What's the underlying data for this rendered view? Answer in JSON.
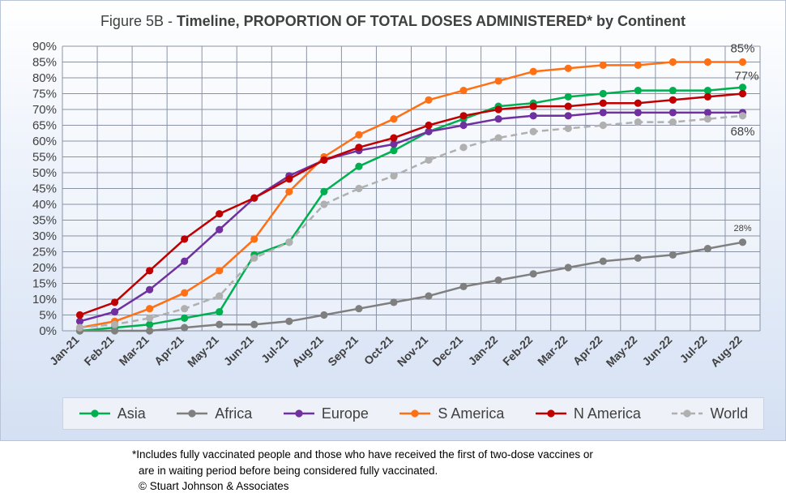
{
  "title": {
    "prefix": "Figure 5B - ",
    "main": "Timeline, PROPORTION OF TOTAL DOSES ADMINISTERED* by Continent"
  },
  "footnote": {
    "line1": "*Includes fully vaccinated people and those who have received the first of two-dose vaccines or",
    "line2": "are in waiting period before being considered fully vaccinated.",
    "line3": "© Stuart Johnson & Associates"
  },
  "chart_data": {
    "type": "line",
    "title": "Figure 5B - Timeline, PROPORTION OF TOTAL DOSES ADMINISTERED* by Continent",
    "x": [
      "Jan-21",
      "Feb-21",
      "Mar-21",
      "Apr-21",
      "May-21",
      "Jun-21",
      "Jul-21",
      "Aug-21",
      "Sep-21",
      "Oct-21",
      "Nov-21",
      "Dec-21",
      "Jan-22",
      "Feb-22",
      "Mar-22",
      "Apr-22",
      "May-22",
      "Jun-22",
      "Jul-22",
      "Aug-22"
    ],
    "ylim": [
      0,
      90
    ],
    "yticks": [
      "0%",
      "5%",
      "10%",
      "15%",
      "20%",
      "25%",
      "30%",
      "35%",
      "40%",
      "45%",
      "50%",
      "55%",
      "60%",
      "65%",
      "70%",
      "75%",
      "80%",
      "85%",
      "90%"
    ],
    "grid": true,
    "legend": "bottom",
    "series": [
      {
        "name": "Asia",
        "color": "#00b050",
        "dash": false,
        "values": [
          0,
          1,
          2,
          4,
          6,
          24,
          28,
          44,
          52,
          57,
          63,
          67,
          71,
          72,
          74,
          75,
          76,
          76,
          76,
          77
        ]
      },
      {
        "name": "Africa",
        "color": "#7f7f7f",
        "dash": false,
        "values": [
          0,
          0,
          0,
          1,
          2,
          2,
          3,
          5,
          7,
          9,
          11,
          14,
          16,
          18,
          20,
          22,
          23,
          24,
          26,
          28
        ]
      },
      {
        "name": "Europe",
        "color": "#7030a0",
        "dash": false,
        "values": [
          3,
          6,
          13,
          22,
          32,
          42,
          49,
          54,
          57,
          59,
          63,
          65,
          67,
          68,
          68,
          69,
          69,
          69,
          69,
          69
        ]
      },
      {
        "name": "S America",
        "color": "#ff7014",
        "dash": false,
        "values": [
          1,
          3,
          7,
          12,
          19,
          29,
          44,
          55,
          62,
          67,
          73,
          76,
          79,
          82,
          83,
          84,
          84,
          85,
          85,
          85
        ]
      },
      {
        "name": "N America",
        "color": "#c00000",
        "dash": false,
        "values": [
          5,
          9,
          19,
          29,
          37,
          42,
          48,
          54,
          58,
          61,
          65,
          68,
          70,
          71,
          71,
          72,
          72,
          73,
          74,
          75
        ]
      },
      {
        "name": "World",
        "color": "#b0b0b0",
        "dash": true,
        "values": [
          1,
          2,
          4,
          7,
          11,
          23,
          28,
          40,
          45,
          49,
          54,
          58,
          61,
          63,
          64,
          65,
          66,
          66,
          67,
          68
        ]
      }
    ],
    "annotations": [
      {
        "text": "85%",
        "series": "S America",
        "index": 19
      },
      {
        "text": "77%",
        "series": "Asia",
        "index": 19
      },
      {
        "text": "68%",
        "series": "World",
        "index": 19
      },
      {
        "text": "28%",
        "series": "Africa",
        "index": 19
      }
    ]
  }
}
